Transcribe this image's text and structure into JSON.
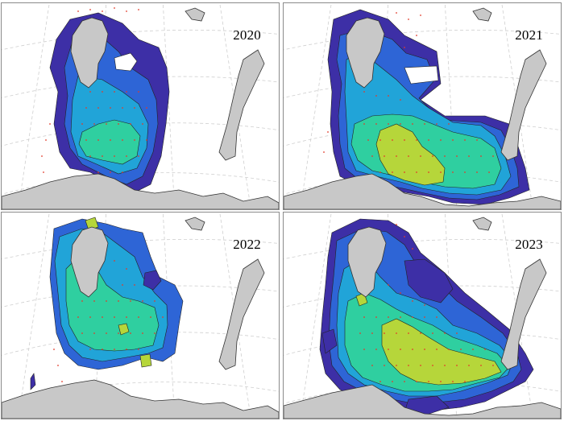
{
  "panels": [
    {
      "year": "2020"
    },
    {
      "year": "2021"
    },
    {
      "year": "2022"
    },
    {
      "year": "2023"
    }
  ],
  "colors": {
    "level1": "#3d2fa6",
    "level2": "#2e65d6",
    "level3": "#21a4d8",
    "level4": "#2fcfa0",
    "level5": "#b6d63a",
    "land": "#c8c8c8",
    "coast": "#333333",
    "grid": "#cfcfcf",
    "stations": "#e23a2a"
  }
}
